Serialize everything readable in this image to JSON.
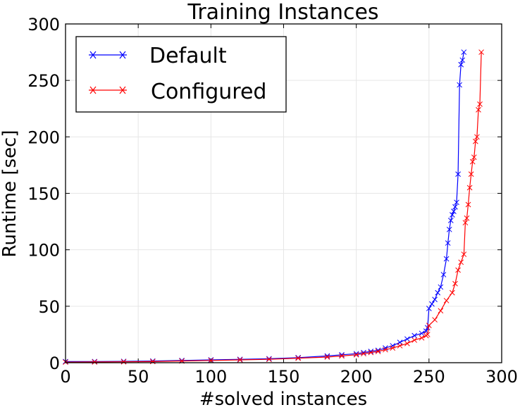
{
  "chart_data": {
    "type": "line",
    "title": "Training Instances",
    "xlabel": "#solved instances",
    "ylabel": "Runtime [sec]",
    "xlim": [
      0,
      300
    ],
    "ylim": [
      0,
      300
    ],
    "xticks": [
      0,
      50,
      100,
      150,
      200,
      250,
      300
    ],
    "yticks": [
      0,
      50,
      100,
      150,
      200,
      250,
      300
    ],
    "grid": true,
    "legend_position": "top-left",
    "series": [
      {
        "name": "Default",
        "color": "#0000ff",
        "marker": "x",
        "points": [
          [
            0,
            1
          ],
          [
            20,
            1
          ],
          [
            40,
            1.2
          ],
          [
            60,
            1.5
          ],
          [
            80,
            2
          ],
          [
            100,
            2.5
          ],
          [
            120,
            3
          ],
          [
            140,
            3.5
          ],
          [
            160,
            4.5
          ],
          [
            180,
            6
          ],
          [
            190,
            7
          ],
          [
            200,
            8
          ],
          [
            205,
            9
          ],
          [
            210,
            10
          ],
          [
            215,
            11
          ],
          [
            220,
            13
          ],
          [
            225,
            15
          ],
          [
            230,
            18
          ],
          [
            235,
            21
          ],
          [
            240,
            24
          ],
          [
            245,
            26
          ],
          [
            248,
            28
          ],
          [
            249,
            31
          ],
          [
            250,
            48
          ],
          [
            252,
            52
          ],
          [
            254,
            56
          ],
          [
            256,
            62
          ],
          [
            258,
            67
          ],
          [
            260,
            78
          ],
          [
            262,
            92
          ],
          [
            263,
            106
          ],
          [
            264,
            118
          ],
          [
            265,
            126
          ],
          [
            266,
            131
          ],
          [
            267,
            134
          ],
          [
            268,
            138
          ],
          [
            269,
            142
          ],
          [
            270,
            167
          ],
          [
            271,
            246
          ],
          [
            272,
            264
          ],
          [
            273,
            268
          ],
          [
            274,
            275
          ]
        ]
      },
      {
        "name": "Configured",
        "color": "#ff0000",
        "marker": "x",
        "points": [
          [
            0,
            0.5
          ],
          [
            20,
            0.6
          ],
          [
            40,
            0.8
          ],
          [
            60,
            1
          ],
          [
            80,
            1.5
          ],
          [
            100,
            2
          ],
          [
            120,
            2.5
          ],
          [
            140,
            3
          ],
          [
            160,
            4
          ],
          [
            180,
            5
          ],
          [
            190,
            6
          ],
          [
            200,
            7
          ],
          [
            205,
            8
          ],
          [
            210,
            9
          ],
          [
            215,
            10
          ],
          [
            220,
            11.5
          ],
          [
            225,
            13
          ],
          [
            230,
            15
          ],
          [
            235,
            17
          ],
          [
            240,
            20
          ],
          [
            245,
            22
          ],
          [
            248,
            24
          ],
          [
            249,
            25
          ],
          [
            250,
            33
          ],
          [
            254,
            38
          ],
          [
            258,
            46
          ],
          [
            262,
            55
          ],
          [
            266,
            62
          ],
          [
            268,
            70
          ],
          [
            270,
            82
          ],
          [
            272,
            89
          ],
          [
            274,
            96
          ],
          [
            275,
            124
          ],
          [
            276,
            128
          ],
          [
            277,
            140
          ],
          [
            278,
            155
          ],
          [
            279,
            167
          ],
          [
            280,
            178
          ],
          [
            281,
            182
          ],
          [
            282,
            196
          ],
          [
            283,
            200
          ],
          [
            284,
            224
          ],
          [
            285,
            229
          ],
          [
            286,
            275
          ]
        ]
      }
    ]
  }
}
